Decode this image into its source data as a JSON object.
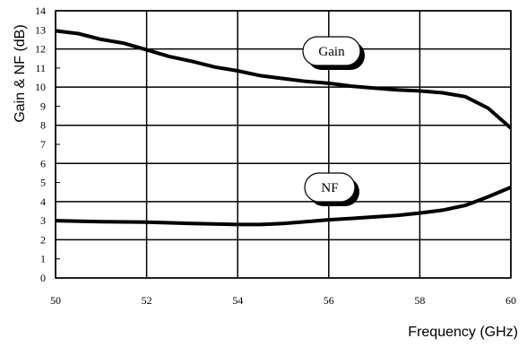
{
  "chart_data": {
    "type": "line",
    "xlabel": "Frequency (GHz)",
    "ylabel": "Gain & NF (dB)",
    "xlim": [
      50,
      60
    ],
    "ylim": [
      0,
      14
    ],
    "x_ticks": [
      "50",
      "52",
      "54",
      "56",
      "58",
      "60"
    ],
    "y_ticks": [
      "0",
      "1",
      "2",
      "3",
      "4",
      "5",
      "6",
      "7",
      "8",
      "9",
      "10",
      "11",
      "12",
      "13",
      "14"
    ],
    "grid": true,
    "series": [
      {
        "name": "Gain",
        "color": "#000000",
        "x": [
          50,
          50.5,
          51,
          51.5,
          52,
          52.5,
          53,
          53.5,
          54,
          54.5,
          55,
          55.5,
          56,
          56.5,
          57,
          57.5,
          58,
          58.5,
          59,
          59.5,
          60
        ],
        "y": [
          12.95,
          12.8,
          12.5,
          12.3,
          11.95,
          11.6,
          11.35,
          11.05,
          10.85,
          10.6,
          10.45,
          10.3,
          10.2,
          10.05,
          9.95,
          9.85,
          9.8,
          9.7,
          9.5,
          8.9,
          7.85
        ]
      },
      {
        "name": "NF",
        "color": "#000000",
        "x": [
          50,
          51,
          52,
          53,
          54,
          54.5,
          55,
          55.5,
          56,
          56.5,
          57,
          57.5,
          58,
          58.5,
          59,
          59.5,
          60
        ],
        "y": [
          3.0,
          2.95,
          2.92,
          2.85,
          2.8,
          2.8,
          2.85,
          2.95,
          3.05,
          3.12,
          3.2,
          3.28,
          3.4,
          3.55,
          3.8,
          4.25,
          4.75
        ]
      }
    ],
    "callouts": [
      {
        "label": "Gain",
        "series": "Gain"
      },
      {
        "label": "NF",
        "series": "NF"
      }
    ]
  }
}
